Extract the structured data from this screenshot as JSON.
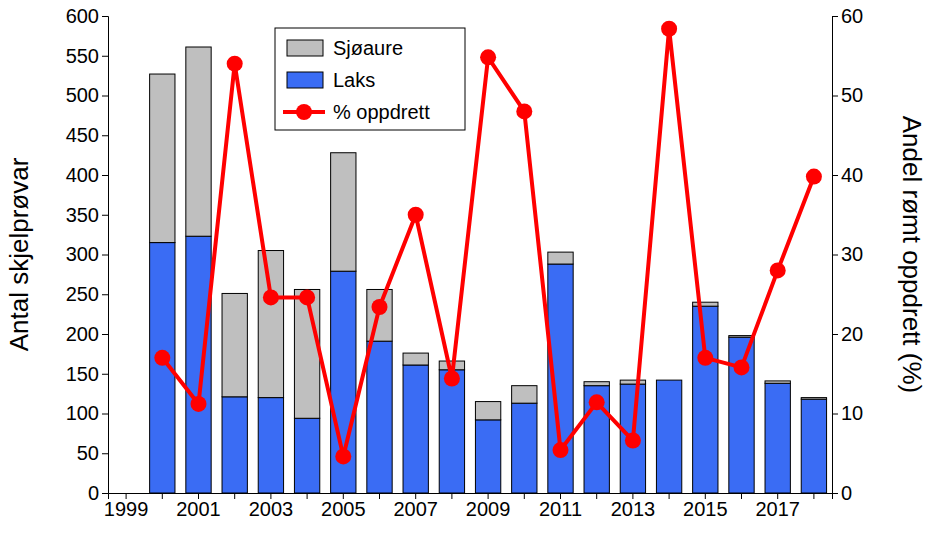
{
  "chart_data": {
    "type": "bar",
    "stacked": true,
    "grid": false,
    "legend": "upper left",
    "y_label": "Antal skjelprøvar",
    "y2_label": "Andel rømt oppdrett (%)",
    "categories": [
      "1999",
      null,
      "2001",
      null,
      "2003",
      null,
      "2005",
      null,
      "2007",
      null,
      "2009",
      null,
      "2011",
      null,
      "2013",
      null,
      "2015",
      null,
      "2017",
      null
    ],
    "ylim": [
      0,
      600
    ],
    "yticks": [
      0,
      50,
      100,
      150,
      200,
      250,
      300,
      350,
      400,
      450,
      500,
      550,
      600
    ],
    "y2lim": [
      0,
      60
    ],
    "y2ticks": [
      0,
      10,
      20,
      30,
      40,
      50,
      60
    ],
    "series": [
      {
        "name": "Sjøaure",
        "type": "bar",
        "color": "#bfbfbf",
        "values": [
          null,
          212,
          238,
          130,
          185,
          162,
          149,
          65,
          15,
          11,
          23,
          22,
          15,
          5,
          5,
          0,
          5,
          2,
          3,
          2
        ]
      },
      {
        "name": "Laks",
        "type": "bar",
        "color": "#3a6cf4",
        "values": [
          null,
          315,
          323,
          121,
          120,
          94,
          279,
          191,
          161,
          155,
          92,
          113,
          288,
          135,
          137,
          142,
          235,
          196,
          138,
          118
        ]
      },
      {
        "name": "% oppdrett",
        "type": "line",
        "axis": "y2",
        "color": "#ff0000",
        "marker": "circle",
        "values": [
          null,
          17,
          11.2,
          54,
          24.6,
          24.6,
          4.6,
          23.4,
          35,
          14.4,
          54.8,
          48,
          5.4,
          11.4,
          6.6,
          58.4,
          17,
          15.8,
          28,
          39.8
        ]
      }
    ]
  }
}
